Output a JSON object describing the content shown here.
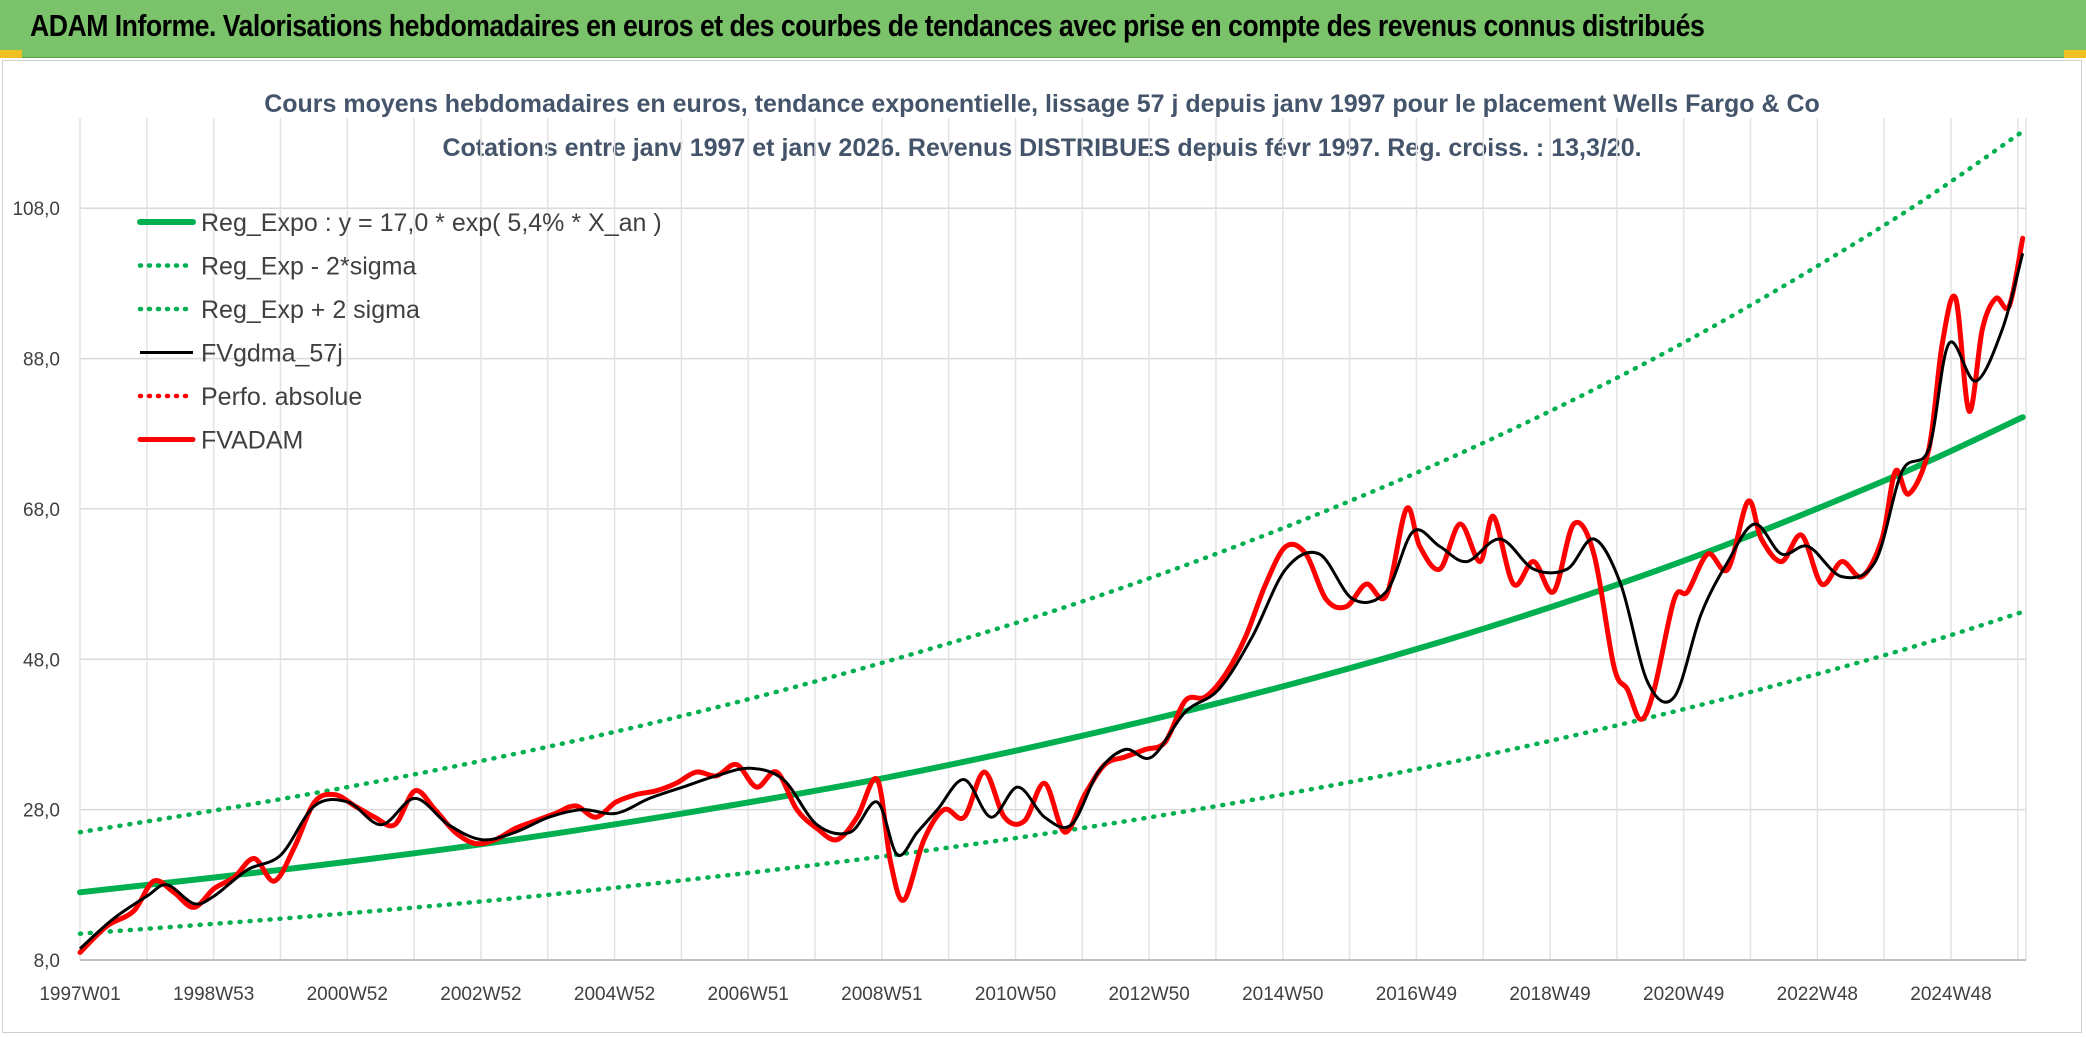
{
  "report_title": "ADAM Informe. Valorisations hebdomadaires en euros et des courbes de tendances avec prise en compte des revenus connus distribués",
  "chart_data": {
    "type": "line",
    "title": "Cours moyens hebdomadaires en euros, tendance exponentielle, lissage 57 j depuis janv 1997 pour le placement Wells Fargo & Co",
    "subtitle": "Cotations entre janv 1997 et janv 2026. Revenus DISTRIBUES depuis févr 1997. Reg. croiss. : 13,3/20.",
    "xlabel": "",
    "ylabel": "",
    "x_range": [
      1997.0,
      2026.05
    ],
    "ylim": [
      8,
      120
    ],
    "y_ticks": [
      "8,0",
      "28,0",
      "48,0",
      "68,0",
      "88,0",
      "108,0"
    ],
    "x_tick_labels": [
      "1997W01",
      "1998W53",
      "2000W52",
      "2002W52",
      "2004W52",
      "2006W51",
      "2008W51",
      "2010W50",
      "2012W50",
      "2014W50",
      "2016W49",
      "2018W49",
      "2020W49",
      "2022W48",
      "2024W48"
    ],
    "grid": true,
    "legend_position": "top-left",
    "colors": {
      "trend": "#00b050",
      "smooth": "#000000",
      "perf": "#ff0000",
      "adam": "#ff0000"
    },
    "series": [
      {
        "name": "Reg_Expo : y = 17,0 * exp( 5,4% *  X_an )",
        "style": "solid-thick",
        "color": "#00b050",
        "x": [
          1997.0,
          2000.0,
          2003.0,
          2006.0,
          2009.0,
          2012.0,
          2015.0,
          2018.0,
          2021.0,
          2024.0,
          2026.0
        ],
        "values": [
          17.0,
          20.0,
          23.4,
          27.5,
          32.2,
          37.9,
          44.5,
          52.2,
          61.3,
          72.0,
          80.2
        ]
      },
      {
        "name": "Reg_Exp - 2*sigma",
        "style": "dotted",
        "color": "#00b050",
        "x": [
          1997.0,
          2000.0,
          2003.0,
          2006.0,
          2009.0,
          2012.0,
          2015.0,
          2018.0,
          2021.0,
          2024.0,
          2026.0
        ],
        "values": [
          11.5,
          13.5,
          15.8,
          18.6,
          21.8,
          25.6,
          30.1,
          35.3,
          41.5,
          48.7,
          54.3
        ]
      },
      {
        "name": "Reg_Exp + 2 sigma",
        "style": "dotted",
        "color": "#00b050",
        "x": [
          1997.0,
          2000.0,
          2003.0,
          2006.0,
          2009.0,
          2012.0,
          2015.0,
          2018.0,
          2021.0,
          2024.0,
          2026.0
        ],
        "values": [
          25.0,
          29.4,
          34.5,
          40.5,
          47.6,
          55.8,
          65.6,
          77.0,
          90.4,
          106.1,
          118.2
        ]
      },
      {
        "name": "FVgdma_57j",
        "style": "solid",
        "color": "#000000",
        "x": [
          1997.0,
          1997.5,
          1998.0,
          1998.3,
          1998.7,
          1999.0,
          1999.5,
          2000.0,
          2000.5,
          2001.0,
          2001.5,
          2002.0,
          2002.5,
          2003.0,
          2003.5,
          2004.0,
          2004.5,
          2005.0,
          2005.5,
          2006.0,
          2006.5,
          2007.0,
          2007.5,
          2008.0,
          2008.5,
          2008.9,
          2009.2,
          2009.5,
          2009.8,
          2010.2,
          2010.6,
          2011.0,
          2011.4,
          2011.8,
          2012.2,
          2012.6,
          2013.0,
          2013.5,
          2014.0,
          2014.5,
          2015.0,
          2015.5,
          2016.0,
          2016.5,
          2016.9,
          2017.3,
          2017.7,
          2018.2,
          2018.7,
          2019.2,
          2019.6,
          2020.0,
          2020.4,
          2020.8,
          2021.2,
          2021.6,
          2022.0,
          2022.4,
          2022.8,
          2023.3,
          2023.8,
          2024.2,
          2024.6,
          2024.9,
          2025.3,
          2025.7,
          2026.0
        ],
        "values": [
          9.5,
          13.5,
          16.5,
          18.0,
          15.5,
          16.5,
          20.0,
          22.0,
          28.5,
          29.0,
          26.0,
          29.5,
          26.0,
          24.0,
          25.0,
          27.0,
          28.0,
          27.5,
          29.5,
          31.0,
          32.5,
          33.5,
          32.0,
          26.0,
          25.0,
          29.0,
          22.0,
          25.0,
          28.0,
          32.0,
          27.0,
          31.0,
          27.0,
          26.0,
          33.0,
          36.0,
          35.0,
          41.0,
          44.0,
          51.0,
          60.0,
          62.0,
          56.0,
          57.0,
          65.0,
          63.0,
          61.0,
          64.0,
          60.0,
          60.0,
          64.0,
          58.0,
          45.0,
          43.0,
          54.0,
          61.0,
          66.0,
          62.0,
          63.0,
          59.0,
          61.0,
          73.0,
          76.0,
          90.0,
          85.0,
          92.0,
          102.0
        ]
      },
      {
        "name": "Perfo. absolue",
        "style": "dotted",
        "color": "#ff0000",
        "x": [],
        "values": []
      },
      {
        "name": "FVADAM",
        "style": "solid-thick",
        "color": "#ff0000",
        "x": [
          1997.0,
          1997.4,
          1997.8,
          1998.1,
          1998.4,
          1998.7,
          1999.0,
          1999.3,
          1999.6,
          1999.9,
          2000.2,
          2000.5,
          2000.8,
          2001.1,
          2001.4,
          2001.7,
          2002.0,
          2002.3,
          2002.6,
          2002.9,
          2003.2,
          2003.5,
          2003.8,
          2004.1,
          2004.4,
          2004.7,
          2005.0,
          2005.3,
          2005.6,
          2005.9,
          2006.2,
          2006.5,
          2006.8,
          2007.1,
          2007.4,
          2007.7,
          2008.0,
          2008.3,
          2008.6,
          2008.9,
          2009.1,
          2009.3,
          2009.6,
          2009.9,
          2010.2,
          2010.5,
          2010.8,
          2011.1,
          2011.4,
          2011.7,
          2012.0,
          2012.3,
          2012.6,
          2012.9,
          2013.2,
          2013.5,
          2013.8,
          2014.1,
          2014.4,
          2014.7,
          2015.0,
          2015.3,
          2015.6,
          2015.9,
          2016.2,
          2016.5,
          2016.8,
          2017.0,
          2017.3,
          2017.6,
          2017.9,
          2018.1,
          2018.4,
          2018.7,
          2019.0,
          2019.3,
          2019.6,
          2019.9,
          2020.1,
          2020.3,
          2020.5,
          2020.8,
          2021.0,
          2021.3,
          2021.6,
          2021.9,
          2022.1,
          2022.4,
          2022.7,
          2023.0,
          2023.3,
          2023.6,
          2023.9,
          2024.1,
          2024.3,
          2024.6,
          2024.8,
          2025.0,
          2025.2,
          2025.4,
          2025.6,
          2025.8,
          2026.0
        ],
        "values": [
          9.0,
          12.5,
          14.5,
          18.5,
          17.0,
          15.0,
          17.5,
          19.0,
          21.5,
          18.5,
          23.0,
          29.0,
          30.0,
          28.5,
          27.0,
          26.0,
          30.5,
          28.0,
          25.0,
          23.5,
          24.0,
          25.5,
          26.5,
          27.5,
          28.5,
          27.0,
          29.0,
          30.0,
          30.5,
          31.5,
          33.0,
          32.5,
          34.0,
          31.0,
          33.0,
          28.0,
          25.5,
          24.0,
          27.0,
          32.0,
          21.0,
          16.0,
          24.0,
          28.0,
          27.0,
          33.0,
          27.0,
          26.5,
          31.5,
          25.0,
          30.0,
          34.0,
          35.0,
          36.0,
          37.0,
          42.5,
          43.0,
          46.0,
          51.0,
          58.0,
          63.0,
          62.0,
          56.0,
          55.0,
          58.0,
          56.5,
          68.0,
          63.0,
          60.0,
          66.0,
          61.0,
          67.0,
          58.0,
          61.0,
          57.0,
          66.0,
          62.0,
          47.0,
          44.0,
          40.0,
          44.0,
          56.0,
          57.0,
          62.0,
          60.0,
          69.0,
          64.0,
          61.0,
          64.5,
          58.0,
          61.0,
          59.0,
          64.0,
          73.0,
          70.0,
          76.0,
          90.0,
          96.0,
          81.0,
          92.0,
          96.0,
          95.0,
          104.0
        ]
      }
    ]
  }
}
